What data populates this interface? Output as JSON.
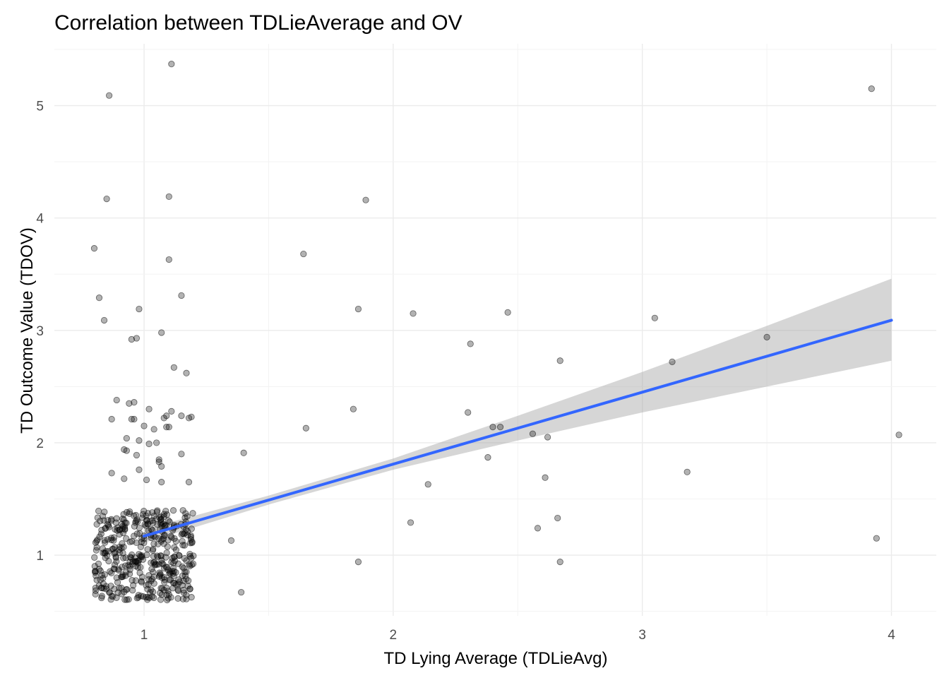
{
  "chart_data": {
    "type": "scatter",
    "title": "Correlation between TDLieAverage and OV",
    "xlabel": "TD Lying Average (TDLieAvg)",
    "ylabel": "TD Outcome Value (TDOV)",
    "xlim": [
      0.64,
      4.18
    ],
    "ylim": [
      0.46,
      5.55
    ],
    "x_ticks": [
      1,
      2,
      3,
      4
    ],
    "y_ticks": [
      1,
      2,
      3,
      4,
      5
    ],
    "x_tick_labels": [
      "1",
      "2",
      "3",
      "4"
    ],
    "y_tick_labels": [
      "1",
      "2",
      "3",
      "4",
      "5"
    ],
    "grid": true,
    "legend": "none",
    "point_color": "#000000",
    "point_opacity": 0.3,
    "points": [
      [
        1.11,
        5.37
      ],
      [
        0.86,
        5.09
      ],
      [
        0.85,
        4.17
      ],
      [
        1.1,
        4.19
      ],
      [
        0.8,
        3.73
      ],
      [
        1.1,
        3.63
      ],
      [
        0.82,
        3.29
      ],
      [
        1.15,
        3.31
      ],
      [
        0.84,
        3.09
      ],
      [
        0.98,
        3.19
      ],
      [
        0.97,
        2.93
      ],
      [
        0.95,
        2.92
      ],
      [
        1.07,
        2.98
      ],
      [
        1.12,
        2.67
      ],
      [
        1.17,
        2.62
      ],
      [
        0.94,
        2.35
      ],
      [
        0.96,
        2.36
      ],
      [
        0.89,
        2.38
      ],
      [
        1.02,
        2.3
      ],
      [
        0.87,
        2.21
      ],
      [
        0.95,
        2.21
      ],
      [
        0.96,
        2.21
      ],
      [
        1.08,
        2.22
      ],
      [
        1.09,
        2.24
      ],
      [
        1.11,
        2.28
      ],
      [
        1.15,
        2.24
      ],
      [
        1.18,
        2.22
      ],
      [
        1.19,
        2.23
      ],
      [
        1.0,
        2.15
      ],
      [
        1.04,
        2.12
      ],
      [
        1.09,
        2.14
      ],
      [
        1.1,
        2.14
      ],
      [
        0.93,
        2.04
      ],
      [
        0.98,
        2.02
      ],
      [
        1.02,
        1.99
      ],
      [
        1.05,
        2.0
      ],
      [
        0.92,
        1.94
      ],
      [
        0.93,
        1.93
      ],
      [
        0.97,
        1.89
      ],
      [
        1.06,
        1.85
      ],
      [
        1.06,
        1.83
      ],
      [
        1.15,
        1.9
      ],
      [
        1.07,
        1.79
      ],
      [
        0.87,
        1.73
      ],
      [
        0.98,
        1.76
      ],
      [
        0.92,
        1.68
      ],
      [
        1.01,
        1.67
      ],
      [
        1.07,
        1.65
      ],
      [
        1.18,
        1.65
      ],
      [
        1.4,
        1.91
      ],
      [
        1.35,
        1.13
      ],
      [
        1.39,
        0.67
      ],
      [
        1.64,
        3.68
      ],
      [
        1.65,
        2.13
      ],
      [
        1.84,
        2.3
      ],
      [
        1.86,
        3.19
      ],
      [
        1.89,
        4.16
      ],
      [
        1.86,
        0.94
      ],
      [
        2.08,
        3.15
      ],
      [
        2.07,
        1.29
      ],
      [
        2.14,
        1.63
      ],
      [
        2.3,
        2.27
      ],
      [
        2.31,
        2.88
      ],
      [
        2.38,
        1.87
      ],
      [
        2.4,
        2.14
      ],
      [
        2.43,
        2.14
      ],
      [
        2.46,
        3.16
      ],
      [
        2.56,
        2.08
      ],
      [
        2.58,
        1.24
      ],
      [
        2.61,
        1.69
      ],
      [
        2.62,
        2.05
      ],
      [
        2.66,
        1.33
      ],
      [
        2.67,
        2.73
      ],
      [
        2.67,
        0.94
      ],
      [
        3.05,
        3.11
      ],
      [
        3.12,
        2.72
      ],
      [
        3.18,
        1.74
      ],
      [
        3.5,
        2.94
      ],
      [
        3.92,
        5.15
      ],
      [
        3.94,
        1.15
      ],
      [
        4.03,
        2.07
      ]
    ],
    "cluster": {
      "x_range": [
        0.8,
        1.2
      ],
      "y_range": [
        0.6,
        1.4
      ],
      "count": 420
    },
    "fit": {
      "method": "lm",
      "line_color": "#3366ff",
      "band_color": "#999999",
      "x": [
        1,
        1.5,
        2,
        2.5,
        3,
        3.5,
        4
      ],
      "y": [
        1.17,
        1.49,
        1.81,
        2.13,
        2.45,
        2.77,
        3.09
      ],
      "lower": [
        1.11,
        1.45,
        1.76,
        2.02,
        2.27,
        2.5,
        2.73
      ],
      "upper": [
        1.23,
        1.53,
        1.86,
        2.24,
        2.63,
        3.04,
        3.46
      ]
    }
  }
}
